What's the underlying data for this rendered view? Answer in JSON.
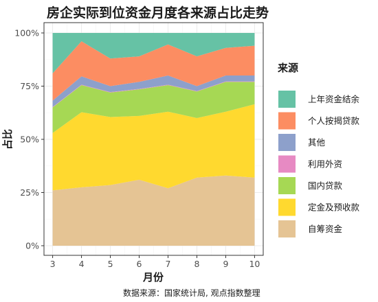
{
  "chart_data": {
    "type": "area",
    "title": "房企实际到位资金月度各来源占比走势",
    "xlabel": "月份",
    "ylabel": "占比",
    "x": [
      3,
      4,
      5,
      6,
      7,
      8,
      9,
      10
    ],
    "x_tick_labels": [
      "3",
      "4",
      "5",
      "6",
      "7",
      "8",
      "9",
      "10"
    ],
    "y_tick_labels": [
      "0%",
      "25%",
      "50%",
      "75%",
      "100%"
    ],
    "y_ticks": [
      0,
      0.25,
      0.5,
      0.75,
      1.0
    ],
    "ylim": [
      0,
      1
    ],
    "stacked": true,
    "grid": true,
    "legend_title": "来源",
    "legend_position": "right",
    "source_note": "数据来源：国家统计局, 观点指数整理",
    "series": [
      {
        "name": "自筹资金",
        "color": "#e5c494",
        "values": [
          0.26,
          0.28,
          0.285,
          0.31,
          0.27,
          0.32,
          0.33,
          0.32
        ]
      },
      {
        "name": "定金及预收款",
        "color": "#ffd92f",
        "values": [
          0.27,
          0.36,
          0.32,
          0.3,
          0.36,
          0.28,
          0.3,
          0.345
        ]
      },
      {
        "name": "国内贷款",
        "color": "#a6d854",
        "values": [
          0.12,
          0.13,
          0.115,
          0.125,
          0.125,
          0.125,
          0.14,
          0.105
        ]
      },
      {
        "name": "利用外资",
        "color": "#e78ac3",
        "values": [
          0.002,
          0.002,
          0.002,
          0.002,
          0.002,
          0.002,
          0.002,
          0.002
        ]
      },
      {
        "name": "其他",
        "color": "#8da0cb",
        "values": [
          0.03,
          0.04,
          0.028,
          0.033,
          0.043,
          0.023,
          0.028,
          0.028
        ]
      },
      {
        "name": "个人按揭贷款",
        "color": "#fc8d62",
        "values": [
          0.128,
          0.168,
          0.13,
          0.12,
          0.146,
          0.14,
          0.13,
          0.14
        ]
      },
      {
        "name": "上年资金结余",
        "color": "#66c2a5",
        "values": [
          0.19,
          0.04,
          0.12,
          0.11,
          0.054,
          0.11,
          0.07,
          0.06
        ]
      }
    ],
    "legend_order": [
      "上年资金结余",
      "个人按揭贷款",
      "其他",
      "利用外资",
      "国内贷款",
      "定金及预收款",
      "自筹资金"
    ]
  }
}
